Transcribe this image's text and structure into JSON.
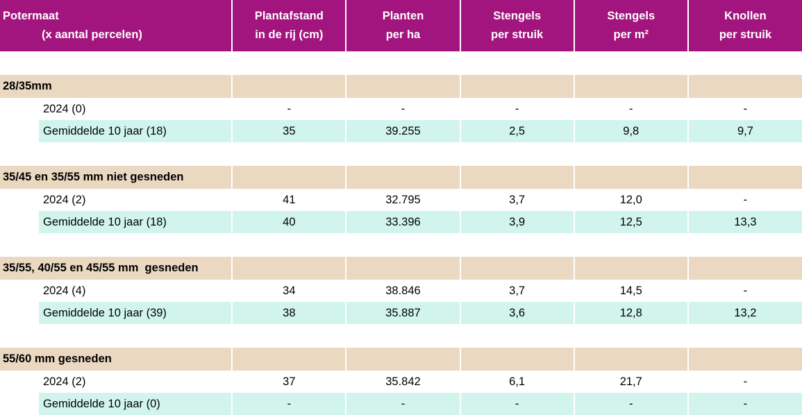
{
  "header": {
    "line1": [
      "Potermaat",
      "Plantafstand",
      "Planten",
      "Stengels",
      "Stengels",
      "Knollen"
    ],
    "line2": [
      "(x aantal percelen)",
      "in de rij (cm)",
      "per ha",
      "per struik",
      "per m²",
      "per struik"
    ]
  },
  "groups": [
    {
      "title": "28/35mm",
      "rows": [
        {
          "label": "2024 (0)",
          "values": [
            "-",
            "-",
            "-",
            "-",
            "-"
          ]
        },
        {
          "label": "Gemiddelde 10 jaar (18)",
          "values": [
            "35",
            "39.255",
            "2,5",
            "9,8",
            "9,7"
          ]
        }
      ]
    },
    {
      "title": "35/45 en 35/55 mm niet gesneden",
      "rows": [
        {
          "label": "2024 (2)",
          "values": [
            "41",
            "32.795",
            "3,7",
            "12,0",
            "-"
          ]
        },
        {
          "label": "Gemiddelde 10 jaar (18)",
          "values": [
            "40",
            "33.396",
            "3,9",
            "12,5",
            "13,3"
          ]
        }
      ]
    },
    {
      "title": "35/55, 40/55 en 45/55 mm  gesneden",
      "rows": [
        {
          "label": "2024 (4)",
          "values": [
            "34",
            "38.846",
            "3,7",
            "14,5",
            "-"
          ]
        },
        {
          "label": "Gemiddelde 10 jaar (39)",
          "values": [
            "38",
            "35.887",
            "3,6",
            "12,8",
            "13,2"
          ]
        }
      ]
    },
    {
      "title": "55/60 mm gesneden",
      "rows": [
        {
          "label": "2024 (2)",
          "values": [
            "37",
            "35.842",
            "6,1",
            "21,7",
            "-"
          ]
        },
        {
          "label": "Gemiddelde 10 jaar (0)",
          "values": [
            "-",
            "-",
            "-",
            "-",
            "-"
          ]
        }
      ]
    }
  ]
}
